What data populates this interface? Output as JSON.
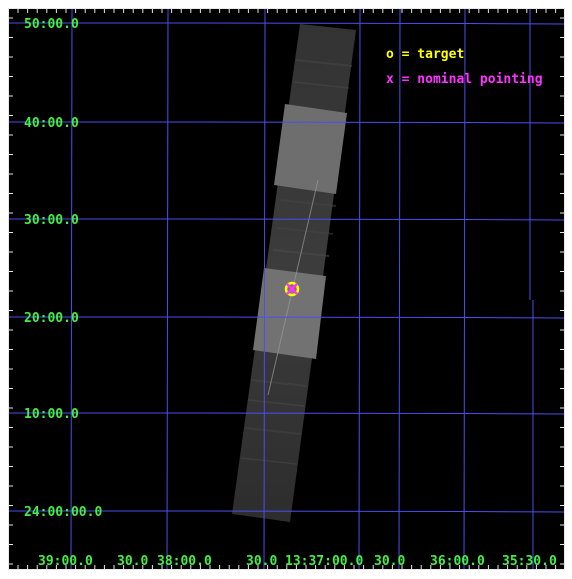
{
  "colors": {
    "background": "#000000",
    "grid": "#4d4df2",
    "labels": "#44ee44",
    "frame": "#e8e8e8",
    "target_marker": "#ffff00",
    "pointing_marker": "#ff33ff"
  },
  "dec_labels": [
    "50:00.0",
    "40:00.0",
    "30:00.0",
    "20:00.0",
    "10:00.0",
    "24:00:00.0"
  ],
  "ra_labels": [
    "39:00.0",
    "30.0",
    "38:00.0",
    "30.0",
    "13:37:00.0",
    "30.0",
    "36:00.0",
    "35:30.0"
  ],
  "legend": {
    "target": "o = target",
    "pointing": "x = nominal pointing"
  },
  "icons": [
    "target-circle-icon",
    "nominal-pointing-x-icon"
  ]
}
